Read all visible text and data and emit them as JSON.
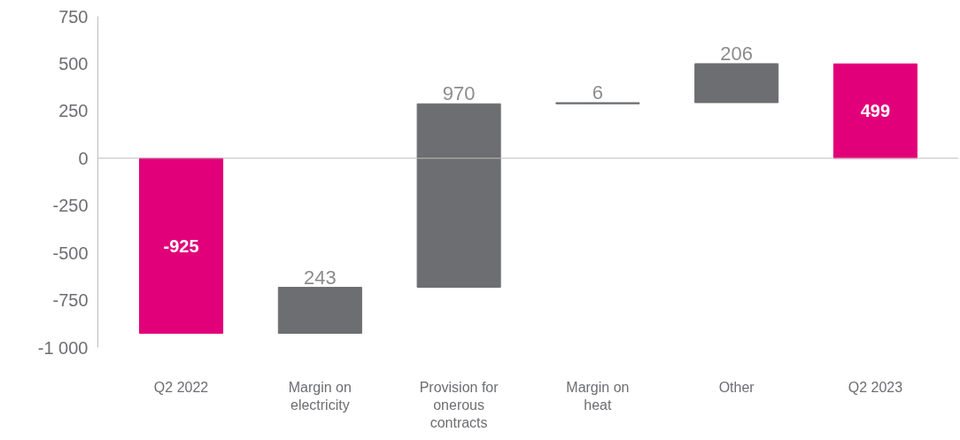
{
  "chart_data": {
    "type": "bar",
    "categories": [
      "Q2 2022",
      "Margin on electricity",
      "Provision for onerous contracts",
      "Margin on heat",
      "Other",
      "Q2 2023"
    ],
    "values": [
      -925,
      243,
      970,
      6,
      206,
      499
    ],
    "base": [
      0,
      -925,
      -682,
      288,
      294,
      0
    ],
    "colors": [
      "#e2007a",
      "#6d6e71",
      "#6d6e71",
      "#6d6e71",
      "#6d6e71",
      "#e2007a"
    ],
    "ylim": [
      -1000,
      750
    ],
    "yticks": [
      750,
      500,
      250,
      0,
      -250,
      -500,
      -750,
      {
        "value": -1000,
        "label": "-1 000"
      }
    ],
    "ref_lines": [
      {
        "axis": "y",
        "value": 0,
        "color": "#bdbdbd"
      }
    ],
    "data_labels": true,
    "grid": false
  }
}
